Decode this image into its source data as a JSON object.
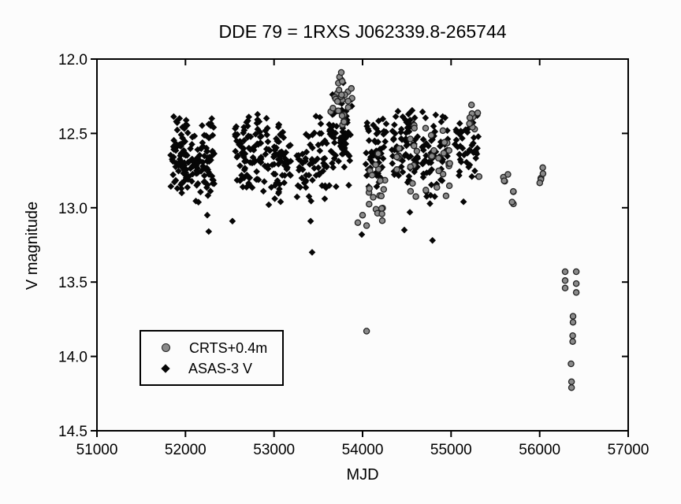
{
  "chart_data": {
    "type": "scatter",
    "title": "DDE 79 = 1RXS J062339.8-265744",
    "xlabel": "MJD",
    "ylabel": "V magnitude",
    "xlim": [
      51000,
      57000
    ],
    "ylim": [
      12.0,
      14.5
    ],
    "y_increases_downward": true,
    "xticks": [
      51000,
      52000,
      53000,
      54000,
      55000,
      56000,
      57000
    ],
    "yticks": [
      12.0,
      12.5,
      13.0,
      13.5,
      14.0,
      14.5
    ],
    "grid": false,
    "legend_position": "inside-lower-left",
    "background": "#fcfcfc",
    "axis_color": "#000000",
    "seed": 7,
    "series": [
      {
        "name": "CRTS+0.4m",
        "marker": "circle",
        "fill": "#8a8a8a",
        "stroke": "#222222",
        "size": 3.6,
        "clusters": [
          {
            "mjd": [
              53640,
              53885
            ],
            "mag": [
              12.09,
              12.5
            ],
            "n": 24
          },
          {
            "mjd": [
              54060,
              54270
            ],
            "mag": [
              12.58,
              13.13
            ],
            "n": 20
          },
          {
            "mjd": [
              54380,
              54630
            ],
            "mag": [
              12.42,
              12.95
            ],
            "n": 16
          },
          {
            "mjd": [
              54700,
              55000
            ],
            "mag": [
              12.45,
              13.0
            ],
            "n": 20
          },
          {
            "mjd": [
              55190,
              55320
            ],
            "mag": [
              12.26,
              12.58
            ],
            "n": 9
          },
          {
            "mjd": [
              55540,
              55715
            ],
            "mag": [
              12.72,
              13.07
            ],
            "n": 8
          },
          {
            "mjd": [
              55970,
              56070
            ],
            "mag": [
              12.71,
              12.89
            ],
            "n": 6
          }
        ],
        "points": [
          [
            53740,
            12.12
          ],
          [
            53760,
            12.09
          ],
          [
            53770,
            12.15
          ],
          [
            53947,
            13.1
          ],
          [
            54000,
            13.05
          ],
          [
            54045,
            13.12
          ],
          [
            54045,
            13.83
          ],
          [
            55316,
            12.79
          ],
          [
            56288,
            13.43
          ],
          [
            56288,
            13.49
          ],
          [
            56288,
            13.54
          ],
          [
            56413,
            13.43
          ],
          [
            56413,
            13.51
          ],
          [
            56413,
            13.57
          ],
          [
            56377,
            13.73
          ],
          [
            56377,
            13.77
          ],
          [
            56373,
            13.86
          ],
          [
            56373,
            13.9
          ],
          [
            56355,
            14.05
          ],
          [
            56360,
            14.17
          ],
          [
            56360,
            14.21
          ]
        ]
      },
      {
        "name": "ASAS-3 V",
        "marker": "diamond",
        "fill": "#060606",
        "stroke": "#060606",
        "size": 4.3,
        "clusters": [
          {
            "mjd": [
              51830,
              52045
            ],
            "mag": [
              12.35,
              12.92
            ],
            "n": 75
          },
          {
            "mjd": [
              52055,
              52330
            ],
            "mag": [
              12.38,
              13.0
            ],
            "n": 80
          },
          {
            "mjd": [
              52560,
              52865
            ],
            "mag": [
              12.33,
              12.88
            ],
            "n": 80
          },
          {
            "mjd": [
              52880,
              53190
            ],
            "mag": [
              12.36,
              12.98
            ],
            "n": 70
          },
          {
            "mjd": [
              53250,
              53600
            ],
            "mag": [
              12.35,
              13.02
            ],
            "n": 65
          },
          {
            "mjd": [
              53620,
              53880
            ],
            "mag": [
              12.18,
              12.92
            ],
            "n": 75
          },
          {
            "mjd": [
              54030,
              54270
            ],
            "mag": [
              12.34,
              12.96
            ],
            "n": 55
          },
          {
            "mjd": [
              54330,
              54625
            ],
            "mag": [
              12.26,
              12.96
            ],
            "n": 65
          },
          {
            "mjd": [
              54670,
              54985
            ],
            "mag": [
              12.32,
              12.98
            ],
            "n": 60
          },
          {
            "mjd": [
              55040,
              55310
            ],
            "mag": [
              12.3,
              12.88
            ],
            "n": 45
          }
        ],
        "points": [
          [
            51908,
            12.87
          ],
          [
            52246,
            13.05
          ],
          [
            52262,
            13.16
          ],
          [
            52530,
            13.09
          ],
          [
            52648,
            12.86
          ],
          [
            52941,
            12.98
          ],
          [
            53074,
            12.96
          ],
          [
            53413,
            13.09
          ],
          [
            53430,
            13.3
          ],
          [
            53755,
            12.13
          ],
          [
            53782,
            12.16
          ],
          [
            53991,
            13.18
          ],
          [
            54472,
            13.15
          ],
          [
            54534,
            13.03
          ],
          [
            54790,
            13.22
          ],
          [
            55140,
            12.96
          ]
        ]
      }
    ]
  }
}
